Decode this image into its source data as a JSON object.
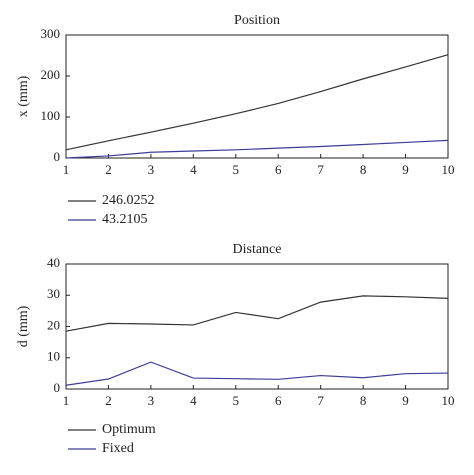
{
  "chart_data": [
    {
      "type": "line",
      "title": "Position",
      "y_label": "x (mm)",
      "x": [
        1,
        2,
        3,
        4,
        5,
        6,
        7,
        8,
        9,
        10
      ],
      "series": [
        {
          "name": "246.0252",
          "color": "#333333",
          "values": [
            20,
            42,
            63,
            85,
            108,
            133,
            162,
            193,
            222,
            252
          ]
        },
        {
          "name": "43.2105",
          "color": "#3c3c9a",
          "values": [
            0,
            5,
            14,
            17,
            20,
            24,
            28,
            33,
            38,
            43
          ]
        }
      ],
      "xlim": [
        1,
        10
      ],
      "xticks": [
        1,
        2,
        3,
        4,
        5,
        6,
        7,
        8,
        9,
        10
      ],
      "ylim": [
        0,
        300
      ],
      "yticks": [
        0,
        100,
        200,
        300
      ]
    },
    {
      "type": "line",
      "title": "Distance",
      "y_label": "d (mm)",
      "x": [
        1,
        2,
        3,
        4,
        5,
        6,
        7,
        8,
        9,
        10
      ],
      "series": [
        {
          "name": "Optimum",
          "color": "#333333",
          "values": [
            18.5,
            21,
            20.8,
            20.5,
            24.5,
            22.5,
            27.8,
            29.8,
            29.5,
            29
          ]
        },
        {
          "name": "Fixed",
          "color": "#3c3c9a",
          "values": [
            1.2,
            3.2,
            8.6,
            3.5,
            3.3,
            3.1,
            4.3,
            3.6,
            4.9,
            5.1
          ]
        }
      ],
      "xlim": [
        1,
        10
      ],
      "xticks": [
        1,
        2,
        3,
        4,
        5,
        6,
        7,
        8,
        9,
        10
      ],
      "ylim": [
        0,
        40
      ],
      "yticks": [
        0,
        10,
        20,
        30,
        40
      ]
    }
  ]
}
